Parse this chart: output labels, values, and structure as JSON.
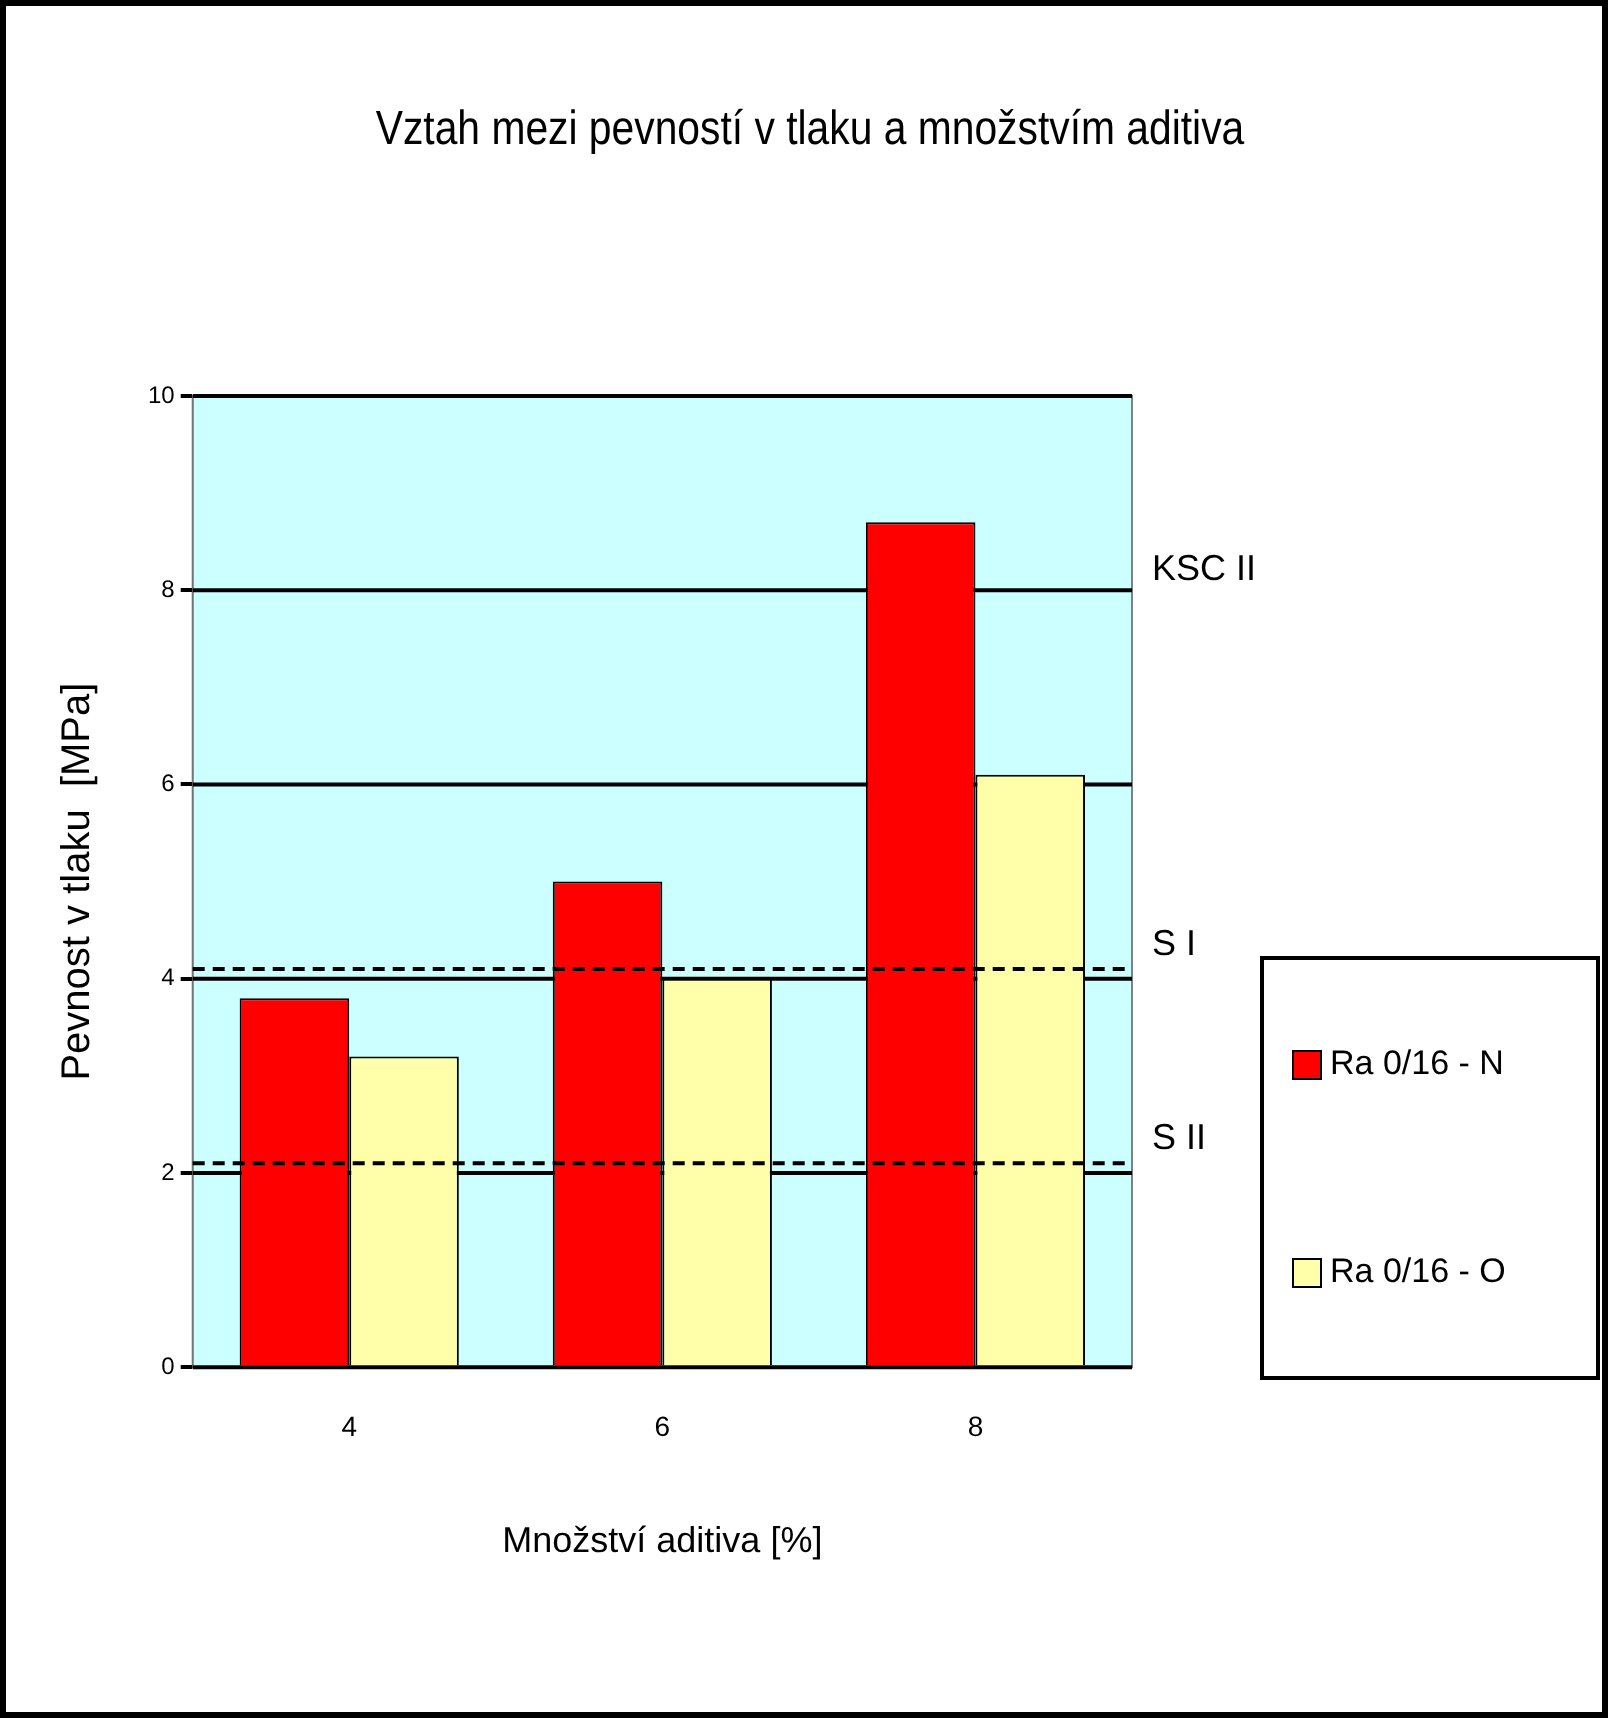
{
  "chart_data": {
    "type": "bar",
    "title": "Vztah mezi pevností v tlaku a množstvím aditiva",
    "xlabel": "Množství aditiva [%]",
    "ylabel": "Pevnost v tlaku  [MPa]",
    "categories": [
      "4",
      "6",
      "8"
    ],
    "series": [
      {
        "name": "Ra 0/16 - N",
        "color": "#ff0000",
        "values": [
          3.8,
          5.0,
          8.7
        ]
      },
      {
        "name": "Ra 0/16 - O",
        "color": "#ffffaa",
        "values": [
          3.2,
          4.0,
          6.1
        ]
      }
    ],
    "ylim": [
      0,
      10
    ],
    "yticks": [
      0,
      2,
      4,
      6,
      8,
      10
    ],
    "grid": "y",
    "legend": "right",
    "annotations": [
      "KSC II"
    ],
    "ref_lines": [
      {
        "axis": "y",
        "value": 4.1,
        "label": "S I",
        "line_style": "dashed"
      },
      {
        "axis": "y",
        "value": 2.1,
        "label": "S II",
        "line_style": "dashed"
      }
    ]
  }
}
